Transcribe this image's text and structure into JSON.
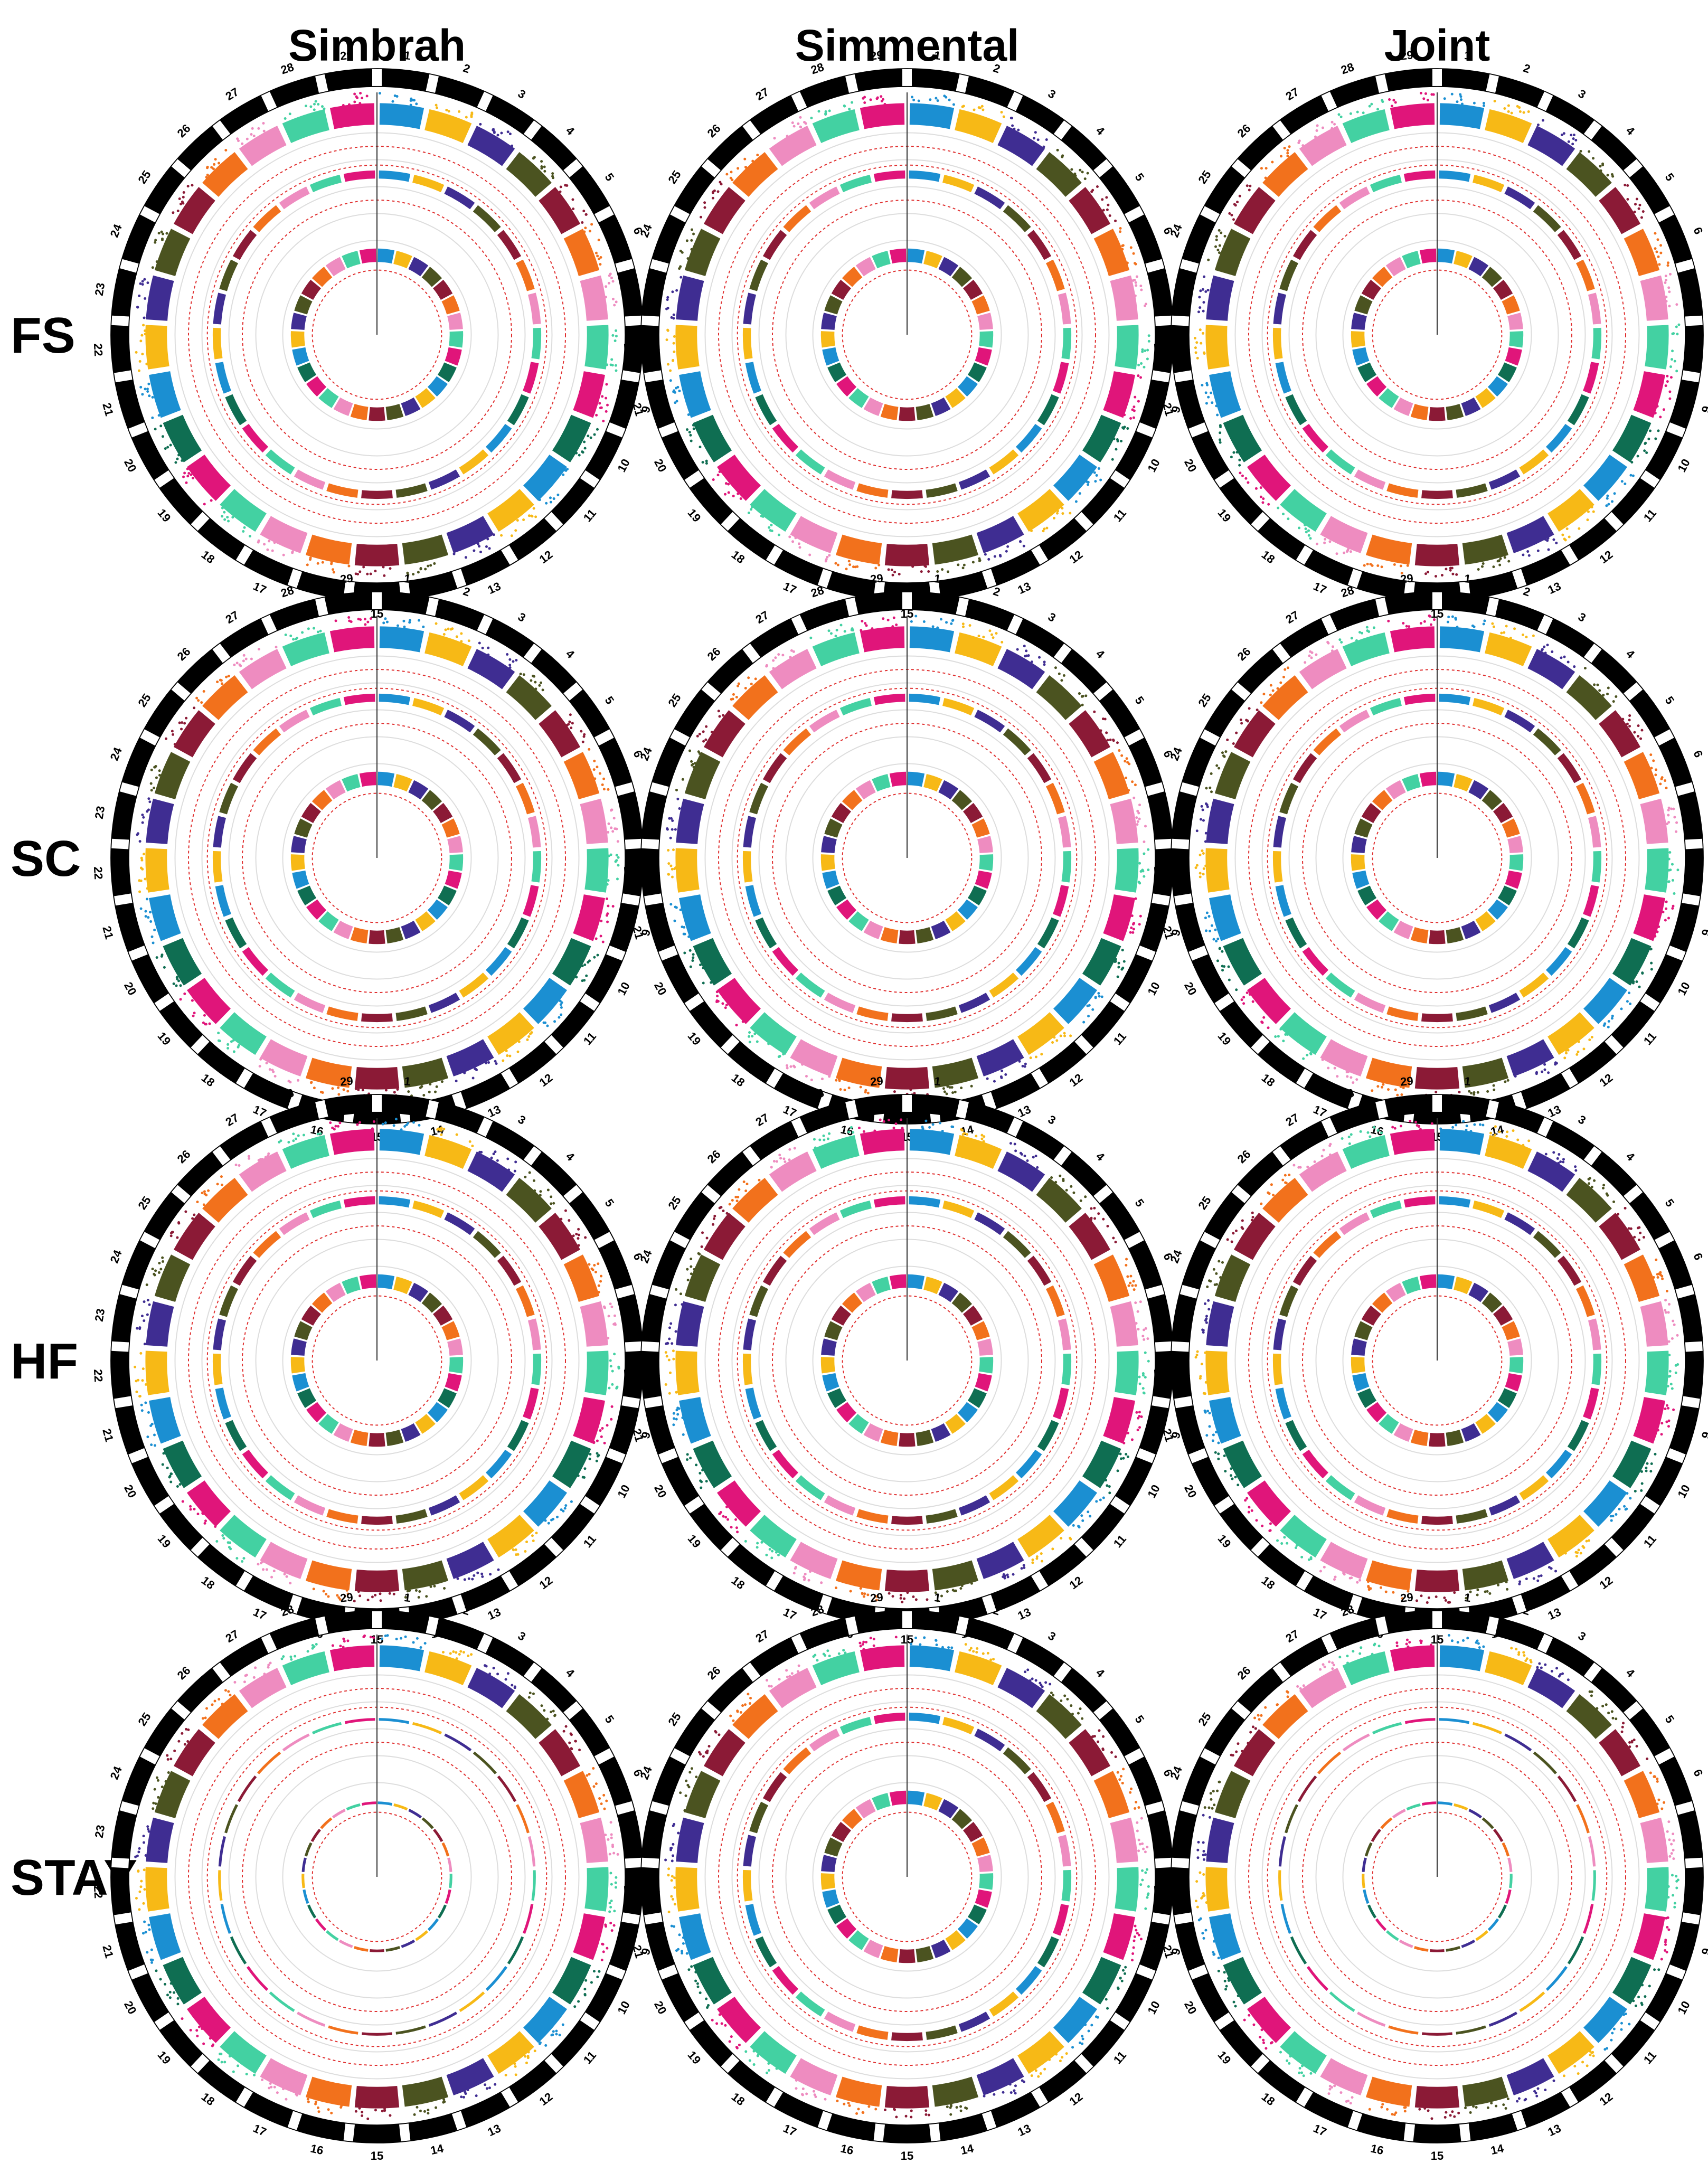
{
  "columns": [
    "Simbrah",
    "Simmental",
    "Joint"
  ],
  "rows": [
    "FS",
    "SC",
    "HF",
    "STAY"
  ],
  "chromosomes": [
    "1",
    "2",
    "3",
    "4",
    "5",
    "6",
    "7",
    "8",
    "9",
    "10",
    "11",
    "12",
    "13",
    "14",
    "15",
    "16",
    "17",
    "18",
    "19",
    "20",
    "21",
    "22",
    "23",
    "24",
    "25",
    "26",
    "27",
    "28",
    "29"
  ],
  "colors": [
    "#1b8fd2",
    "#f7b916",
    "#3f2d92",
    "#4b5320",
    "#8b1a36",
    "#f2711c",
    "#ee8cc0",
    "#43d1a2",
    "#e0157a",
    "#0f6e52"
  ]
}
